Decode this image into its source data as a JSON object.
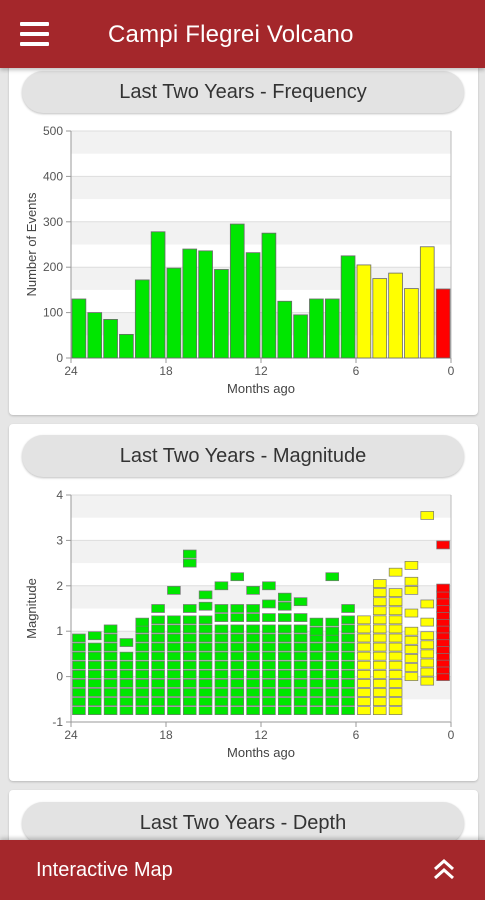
{
  "app": {
    "title": "Campi Flegrei Volcano"
  },
  "cards": {
    "frequency": {
      "title": "Last Two Years - Frequency"
    },
    "magnitude": {
      "title": "Last Two Years - Magnitude"
    },
    "depth": {
      "title": "Last Two Years - Depth"
    }
  },
  "bottom_bar": {
    "label": "Interactive Map"
  },
  "icons": {
    "menu": "hamburger-menu-icon",
    "expand": "double-chevron-up-icon"
  },
  "colors": {
    "brand": "#a4272b",
    "recent": "#ffff00",
    "latest": "#ff0000",
    "older": "#00e600"
  },
  "chart_data": [
    {
      "type": "bar",
      "xlabel": "Months ago",
      "ylabel": "Number of Events",
      "xlim": [
        24,
        0
      ],
      "ylim": [
        0,
        500
      ],
      "xticks": [
        24,
        18,
        12,
        6,
        0
      ],
      "yticks": [
        0,
        100,
        200,
        300,
        400,
        500
      ],
      "grid": true,
      "series": [
        {
          "x": [
            23.5,
            22.5,
            21.5,
            20.5,
            19.5,
            18.5,
            17.5,
            16.5,
            15.5,
            14.5,
            13.5,
            12.5,
            11.5,
            10.5,
            9.5,
            8.5,
            7.5,
            6.5,
            5.5,
            4.5,
            3.5,
            2.5,
            1.5,
            0.5
          ],
          "values": [
            130,
            100,
            85,
            52,
            172,
            278,
            198,
            240,
            236,
            195,
            295,
            232,
            275,
            125,
            95,
            130,
            130,
            225,
            205,
            175,
            187,
            153,
            245,
            152
          ],
          "colors": [
            "#00e600",
            "#00e600",
            "#00e600",
            "#00e600",
            "#00e600",
            "#00e600",
            "#00e600",
            "#00e600",
            "#00e600",
            "#00e600",
            "#00e600",
            "#00e600",
            "#00e600",
            "#00e600",
            "#00e600",
            "#00e600",
            "#00e600",
            "#00e600",
            "#ffff00",
            "#ffff00",
            "#ffff00",
            "#ffff00",
            "#ffff00",
            "#ff0000"
          ]
        }
      ]
    },
    {
      "type": "heatmap",
      "xlabel": "Months ago",
      "ylabel": "Magnitude",
      "xlim": [
        24,
        0
      ],
      "ylim": [
        -1,
        4
      ],
      "xticks": [
        24,
        18,
        12,
        6,
        0
      ],
      "yticks": [
        -1,
        0,
        1,
        2,
        3,
        4
      ],
      "grid": true,
      "columns": [
        {
          "x": 23.5,
          "magnitudes": [
            -0.75,
            -0.55,
            -0.35,
            -0.15,
            0.05,
            0.25,
            0.45,
            0.65,
            0.85
          ],
          "color": "#00e600"
        },
        {
          "x": 22.5,
          "magnitudes": [
            -0.75,
            -0.55,
            -0.35,
            -0.15,
            0.05,
            0.25,
            0.45,
            0.65,
            0.9
          ],
          "color": "#00e600"
        },
        {
          "x": 21.5,
          "magnitudes": [
            -0.75,
            -0.55,
            -0.35,
            -0.15,
            0.05,
            0.25,
            0.45,
            0.65,
            0.85,
            1.05
          ],
          "color": "#00e600"
        },
        {
          "x": 20.5,
          "magnitudes": [
            -0.75,
            -0.55,
            -0.35,
            -0.15,
            0.05,
            0.25,
            0.45,
            0.75
          ],
          "color": "#00e600"
        },
        {
          "x": 19.5,
          "magnitudes": [
            -0.75,
            -0.55,
            -0.35,
            -0.15,
            0.05,
            0.25,
            0.45,
            0.65,
            0.85,
            1.05,
            1.2
          ],
          "color": "#00e600"
        },
        {
          "x": 18.5,
          "magnitudes": [
            -0.75,
            -0.55,
            -0.35,
            -0.15,
            0.05,
            0.25,
            0.45,
            0.65,
            0.85,
            1.05,
            1.25,
            1.5
          ],
          "color": "#00e600"
        },
        {
          "x": 17.5,
          "magnitudes": [
            -0.75,
            -0.55,
            -0.35,
            -0.15,
            0.05,
            0.25,
            0.45,
            0.65,
            0.85,
            1.05,
            1.25,
            1.9
          ],
          "color": "#00e600"
        },
        {
          "x": 16.5,
          "magnitudes": [
            -0.75,
            -0.55,
            -0.35,
            -0.15,
            0.05,
            0.25,
            0.45,
            0.65,
            0.85,
            1.05,
            1.25,
            1.5,
            2.5,
            2.7
          ],
          "color": "#00e600"
        },
        {
          "x": 15.5,
          "magnitudes": [
            -0.75,
            -0.55,
            -0.35,
            -0.15,
            0.05,
            0.25,
            0.45,
            0.65,
            0.85,
            1.05,
            1.25,
            1.55,
            1.8
          ],
          "color": "#00e600"
        },
        {
          "x": 14.5,
          "magnitudes": [
            -0.75,
            -0.55,
            -0.35,
            -0.15,
            0.05,
            0.25,
            0.45,
            0.65,
            0.85,
            1.05,
            1.3,
            1.5,
            2.0
          ],
          "color": "#00e600"
        },
        {
          "x": 13.5,
          "magnitudes": [
            -0.75,
            -0.55,
            -0.35,
            -0.15,
            0.05,
            0.25,
            0.45,
            0.65,
            0.85,
            1.05,
            1.3,
            1.5,
            2.2
          ],
          "color": "#00e600"
        },
        {
          "x": 12.5,
          "magnitudes": [
            -0.75,
            -0.55,
            -0.35,
            -0.15,
            0.05,
            0.25,
            0.45,
            0.65,
            0.85,
            1.05,
            1.3,
            1.5,
            1.9
          ],
          "color": "#00e600"
        },
        {
          "x": 11.5,
          "magnitudes": [
            -0.75,
            -0.55,
            -0.35,
            -0.15,
            0.05,
            0.25,
            0.45,
            0.65,
            0.85,
            1.05,
            1.3,
            1.6,
            2.0
          ],
          "color": "#00e600"
        },
        {
          "x": 10.5,
          "magnitudes": [
            -0.75,
            -0.55,
            -0.35,
            -0.15,
            0.05,
            0.25,
            0.45,
            0.65,
            0.85,
            1.05,
            1.3,
            1.55,
            1.75
          ],
          "color": "#00e600"
        },
        {
          "x": 9.5,
          "magnitudes": [
            -0.75,
            -0.55,
            -0.35,
            -0.15,
            0.05,
            0.25,
            0.45,
            0.65,
            0.85,
            1.05,
            1.3,
            1.65
          ],
          "color": "#00e600"
        },
        {
          "x": 8.5,
          "magnitudes": [
            -0.75,
            -0.55,
            -0.35,
            -0.15,
            0.05,
            0.25,
            0.45,
            0.65,
            0.85,
            1.0,
            1.2
          ],
          "color": "#00e600"
        },
        {
          "x": 7.5,
          "magnitudes": [
            -0.75,
            -0.55,
            -0.35,
            -0.15,
            0.05,
            0.25,
            0.45,
            0.65,
            0.85,
            1.0,
            1.2,
            2.2
          ],
          "color": "#00e600"
        },
        {
          "x": 6.5,
          "magnitudes": [
            -0.75,
            -0.55,
            -0.35,
            -0.15,
            0.05,
            0.25,
            0.45,
            0.65,
            0.85,
            1.05,
            1.25,
            1.5
          ],
          "color": "#00e600"
        },
        {
          "x": 5.5,
          "magnitudes": [
            -0.75,
            -0.55,
            -0.35,
            -0.15,
            0.05,
            0.25,
            0.45,
            0.65,
            0.85,
            1.05,
            1.25
          ],
          "color": "#ffff00"
        },
        {
          "x": 4.5,
          "magnitudes": [
            -0.75,
            -0.55,
            -0.35,
            -0.15,
            0.05,
            0.25,
            0.45,
            0.65,
            0.85,
            1.05,
            1.25,
            1.45,
            1.65,
            1.85,
            2.05
          ],
          "color": "#ffff00"
        },
        {
          "x": 3.5,
          "magnitudes": [
            -0.75,
            -0.55,
            -0.35,
            -0.15,
            0.05,
            0.25,
            0.45,
            0.65,
            0.85,
            1.05,
            1.25,
            1.45,
            1.65,
            1.85,
            2.3
          ],
          "color": "#ffff00"
        },
        {
          "x": 2.5,
          "magnitudes": [
            0.0,
            0.2,
            0.4,
            0.6,
            0.8,
            1.0,
            1.4,
            1.9,
            2.1,
            2.45
          ],
          "color": "#ffff00"
        },
        {
          "x": 1.5,
          "magnitudes": [
            -0.1,
            0.1,
            0.3,
            0.5,
            0.7,
            0.9,
            1.2,
            1.6,
            3.55
          ],
          "color": "#ffff00"
        },
        {
          "x": 0.5,
          "magnitudes": [
            0.0,
            0.15,
            0.3,
            0.45,
            0.6,
            0.75,
            0.9,
            1.05,
            1.2,
            1.35,
            1.5,
            1.65,
            1.8,
            1.95,
            2.9
          ],
          "color": "#ff0000"
        }
      ]
    }
  ]
}
